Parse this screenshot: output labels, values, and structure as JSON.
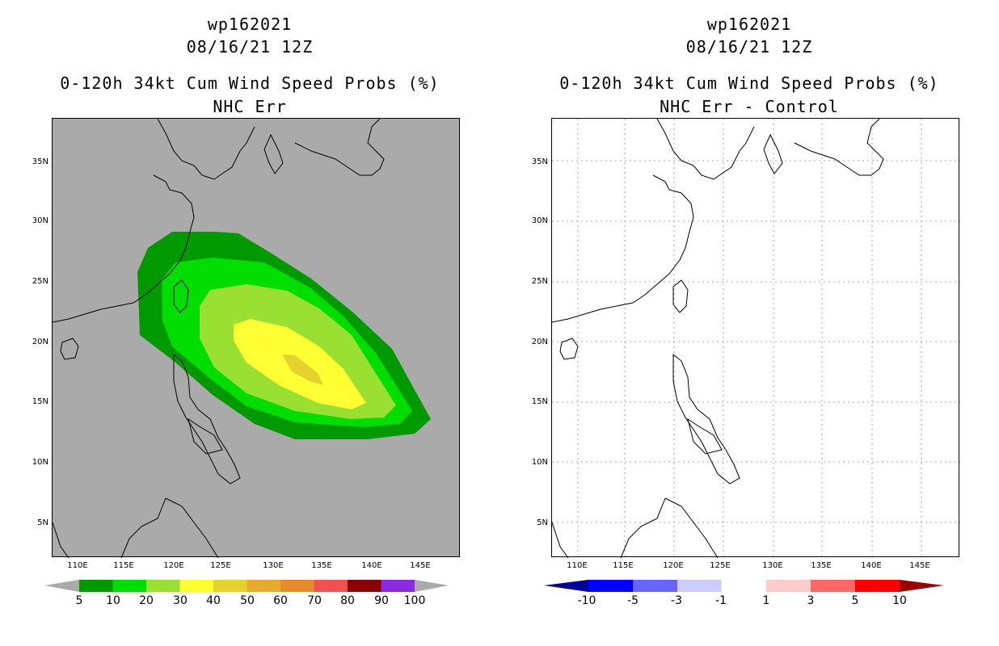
{
  "left": {
    "storm_id": "wp162021",
    "datetime": "08/16/21 12Z",
    "product": "0-120h 34kt Cum Wind Speed Probs (%)",
    "subtitle": "NHC Err",
    "background_color": "#aaaaaa",
    "colorbar": {
      "labels": [
        "5",
        "10",
        "20",
        "30",
        "40",
        "50",
        "60",
        "70",
        "80",
        "90",
        "100"
      ],
      "colors": [
        "#009900",
        "#00dd00",
        "#99e033",
        "#ffff33",
        "#e6d22e",
        "#e6aa2e",
        "#e68a2e",
        "#f05050",
        "#8b0000",
        "#8a2be2"
      ]
    },
    "contour_levels": [
      {
        "label": "5",
        "color": "#009900"
      },
      {
        "label": "10",
        "color": "#00dd00"
      },
      {
        "label": "20",
        "color": "#99e033"
      },
      {
        "label": "30",
        "color": "#ffff33"
      },
      {
        "label": "40",
        "color": "#e6d22e"
      }
    ]
  },
  "right": {
    "storm_id": "wp162021",
    "datetime": "08/16/21 12Z",
    "product": "0-120h 34kt Cum Wind Speed Probs (%)",
    "subtitle": "NHC Err - Control",
    "colorbar": {
      "labels": [
        "-10",
        "-5",
        "-3",
        "-1",
        "1",
        "3",
        "5",
        "10"
      ],
      "colors": [
        "#000099",
        "#0000ff",
        "#6666ff",
        "#ccccff",
        "#ffffff",
        "#ffcccc",
        "#ff6666",
        "#ff0000",
        "#990000"
      ]
    }
  },
  "axes": {
    "lat_labels": [
      "35N",
      "30N",
      "25N",
      "20N",
      "15N",
      "10N",
      "5N"
    ],
    "lon_labels": [
      "110E",
      "115E",
      "120E",
      "125E",
      "130E",
      "135E",
      "140E",
      "145E"
    ]
  }
}
